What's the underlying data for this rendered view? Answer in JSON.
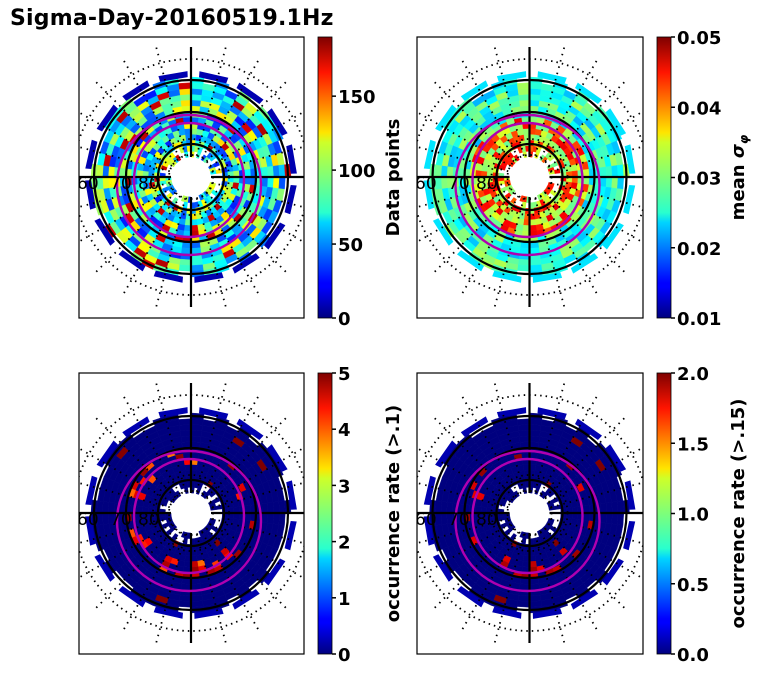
{
  "title": "Sigma-Day-20160519.1Hz",
  "chart_data": [
    {
      "type": "heatmap",
      "projection": "polar (magnetic latitude / MLT)",
      "panel": "top-left",
      "title": "",
      "lat_labels": [
        "60",
        "70",
        "80"
      ],
      "colormap": "jet",
      "colorbar": {
        "label": "Data points",
        "range": [
          0,
          190
        ],
        "ticks": [
          0,
          50,
          100,
          150
        ],
        "tick_labels": [
          "0",
          "50",
          "100",
          "150"
        ]
      },
      "description": "Number of data points per MLAT/MLT bin",
      "overlays": [
        "magenta auroral oval boundaries (2)",
        "black solid latitude circles",
        "black dotted grid"
      ]
    },
    {
      "type": "heatmap",
      "projection": "polar (magnetic latitude / MLT)",
      "panel": "top-right",
      "title": "",
      "lat_labels": [
        "60",
        "70",
        "80"
      ],
      "colormap": "jet",
      "colorbar": {
        "label": "mean σ_φ",
        "range": [
          0.01,
          0.05
        ],
        "ticks": [
          0.01,
          0.02,
          0.03,
          0.04,
          0.05
        ],
        "tick_labels": [
          "0.01",
          "0.02",
          "0.03",
          "0.04",
          "0.05"
        ]
      },
      "description": "Mean phase scintillation index per bin",
      "overlays": [
        "magenta auroral oval boundaries (2)",
        "black solid latitude circles",
        "black dotted grid"
      ]
    },
    {
      "type": "heatmap",
      "projection": "polar (magnetic latitude / MLT)",
      "panel": "bottom-left",
      "title": "",
      "lat_labels": [
        "60",
        "70",
        "80"
      ],
      "colormap": "jet",
      "colorbar": {
        "label": "occurrence rate (>.1)",
        "range": [
          0,
          5
        ],
        "ticks": [
          0,
          1,
          2,
          3,
          4,
          5
        ],
        "tick_labels": [
          "0",
          "1",
          "2",
          "3",
          "4",
          "5"
        ]
      },
      "description": "Occurrence rate of sigma_phi > 0.1",
      "overlays": [
        "magenta auroral oval boundaries (2)",
        "black solid latitude circles",
        "black dotted grid"
      ]
    },
    {
      "type": "heatmap",
      "projection": "polar (magnetic latitude / MLT)",
      "panel": "bottom-right",
      "title": "",
      "lat_labels": [
        "60",
        "70",
        "80"
      ],
      "colormap": "jet",
      "colorbar": {
        "label": "occurrence rate (>.15)",
        "range": [
          0,
          2
        ],
        "ticks": [
          0.0,
          0.5,
          1.0,
          1.5,
          2.0
        ],
        "tick_labels": [
          "0.0",
          "0.5",
          "1.0",
          "1.5",
          "2.0"
        ]
      },
      "description": "Occurrence rate of sigma_phi > 0.15",
      "overlays": [
        "magenta auroral oval boundaries (2)",
        "black solid latitude circles",
        "black dotted grid"
      ]
    }
  ],
  "colors": {
    "oval": "#b000b0",
    "grid": "#000000",
    "background": "#ffffff"
  }
}
